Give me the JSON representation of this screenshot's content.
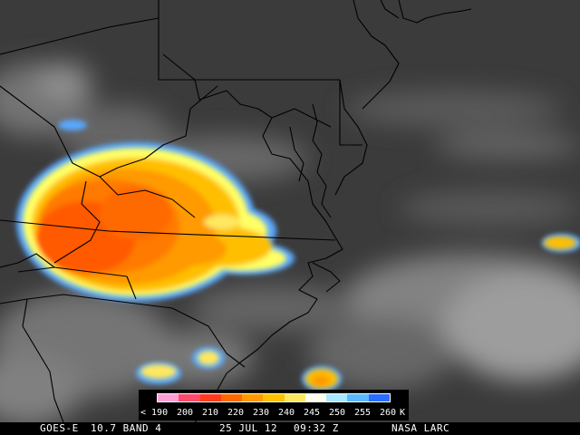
{
  "footer": {
    "satellite": "GOES-E",
    "band": "10.7 BAND 4",
    "date": "25 JUL 12",
    "time": "09:32 Z",
    "credit": "NASA LARC"
  },
  "legend": {
    "labels": [
      "< 190",
      "200",
      "210",
      "220",
      "230",
      "240",
      "245",
      "250",
      "255",
      "260",
      "K"
    ],
    "gradient_colors": [
      "#ff9fd6",
      "#ff4a6a",
      "#ff3a1e",
      "#ff6a00",
      "#ff9a00",
      "#ffc000",
      "#ffe860",
      "#fffff0",
      "#a9e7ff",
      "#5bb8ff",
      "#2a6dff"
    ]
  },
  "colors": {
    "background": "#3a3a3a",
    "borders": "#000000",
    "cloud_cold": "#ff5a00",
    "cloud_mid": "#ffb000",
    "cloud_edge": "#ffff66",
    "cloud_fringe": "#5aa8ff"
  }
}
